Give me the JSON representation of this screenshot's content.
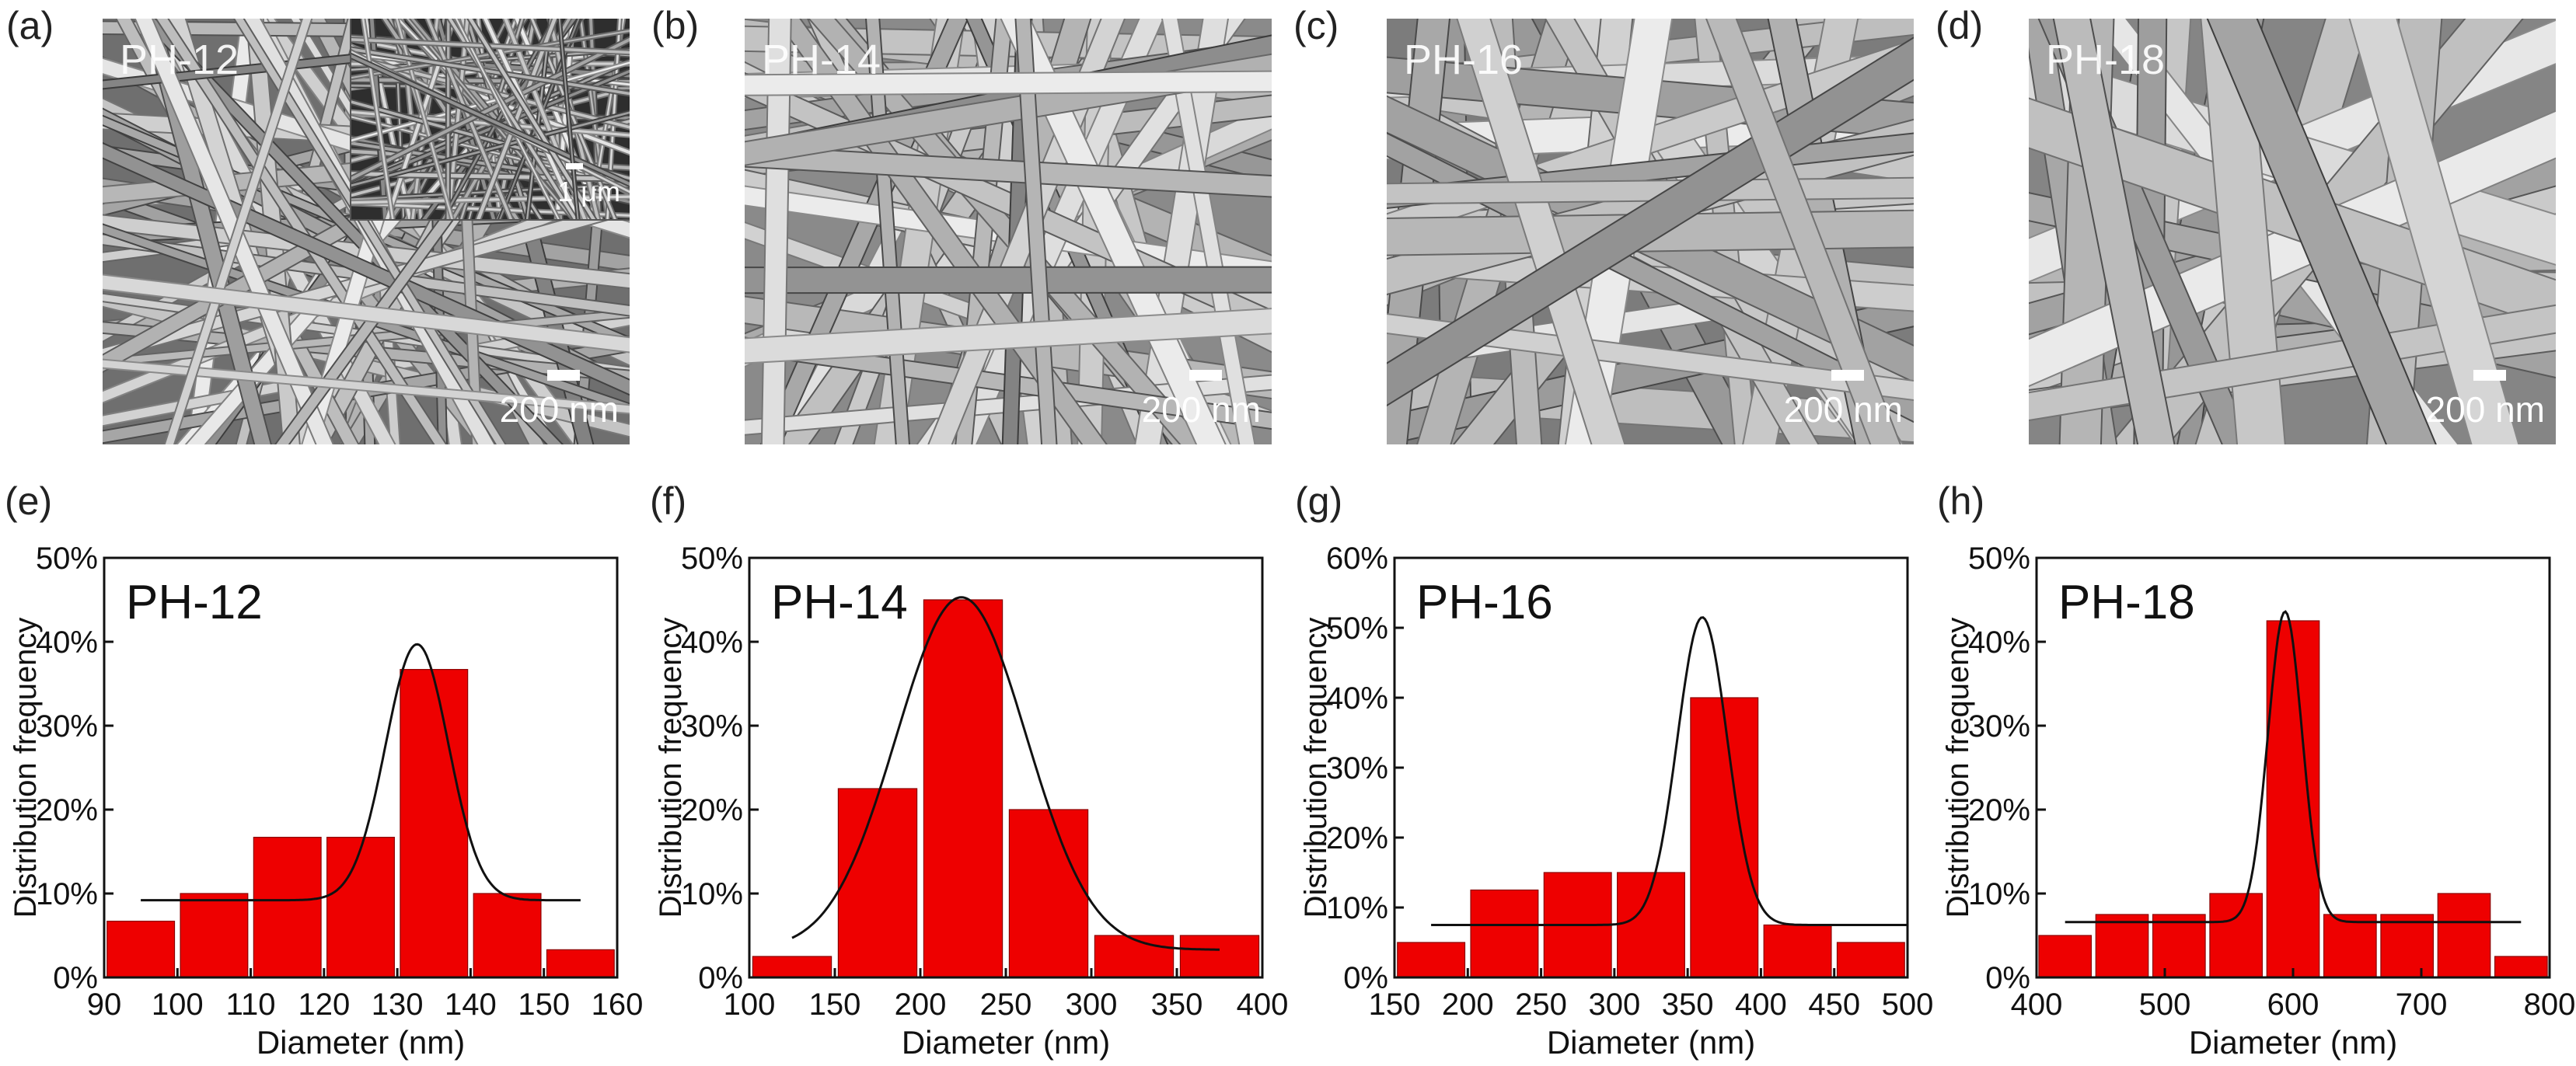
{
  "sem_panels": [
    {
      "letter": "(a)",
      "label": "PH-12",
      "scale": "200 nm",
      "inset_scale": "1 μm",
      "tone": "#6f6f6f"
    },
    {
      "letter": "(b)",
      "label": "PH-14",
      "scale": "200 nm",
      "tone": "#8a8a8a"
    },
    {
      "letter": "(c)",
      "label": "PH-16",
      "scale": "200 nm",
      "tone": "#7c7c7c"
    },
    {
      "letter": "(d)",
      "label": "PH-18",
      "scale": "200 nm",
      "tone": "#858585"
    }
  ],
  "chart_data": [
    {
      "panel": "(e)",
      "type": "bar",
      "title": "PH-12",
      "xlabel": "Diameter (nm)",
      "ylabel": "Distribution frequency",
      "xlim": [
        90,
        160
      ],
      "ylim": [
        0,
        0.5
      ],
      "xticks": [
        "90",
        "100",
        "110",
        "120",
        "130",
        "140",
        "150",
        "160"
      ],
      "yticks": [
        "0%",
        "10%",
        "20%",
        "30%",
        "40%",
        "50%"
      ],
      "bin_width": 10,
      "bars": [
        {
          "x": 95,
          "y": 0.067
        },
        {
          "x": 105,
          "y": 0.1
        },
        {
          "x": 115,
          "y": 0.167
        },
        {
          "x": 125,
          "y": 0.167
        },
        {
          "x": 135,
          "y": 0.367
        },
        {
          "x": 145,
          "y": 0.1
        },
        {
          "x": 155,
          "y": 0.033
        }
      ],
      "fit": {
        "type": "gaussian",
        "x_range": [
          95,
          155
        ],
        "baseline": 0.092,
        "amplitude": 0.305,
        "center": 132.7,
        "sigma": 4.3
      },
      "bar_color": "#ee0000"
    },
    {
      "panel": "(f)",
      "type": "bar",
      "title": "PH-14",
      "xlabel": "Diameter (nm)",
      "ylabel": "Distribution frequency",
      "xlim": [
        100,
        400
      ],
      "ylim": [
        0,
        0.5
      ],
      "xticks": [
        "100",
        "150",
        "200",
        "250",
        "300",
        "350",
        "400"
      ],
      "yticks": [
        "0%",
        "10%",
        "20%",
        "30%",
        "40%",
        "50%"
      ],
      "bin_width": 50,
      "bars": [
        {
          "x": 125,
          "y": 0.025
        },
        {
          "x": 175,
          "y": 0.225
        },
        {
          "x": 225,
          "y": 0.45
        },
        {
          "x": 275,
          "y": 0.2
        },
        {
          "x": 325,
          "y": 0.05
        },
        {
          "x": 375,
          "y": 0.05
        }
      ],
      "fit": {
        "type": "gaussian",
        "x_range": [
          125,
          375
        ],
        "baseline": 0.033,
        "amplitude": 0.42,
        "center": 224,
        "sigma": 38
      },
      "bar_color": "#ee0000"
    },
    {
      "panel": "(g)",
      "type": "bar",
      "title": "PH-16",
      "xlabel": "Diameter (nm)",
      "ylabel": "Distribution frequency",
      "xlim": [
        150,
        500
      ],
      "ylim": [
        0,
        0.6
      ],
      "xticks": [
        "150",
        "200",
        "250",
        "300",
        "350",
        "400",
        "450",
        "500"
      ],
      "yticks": [
        "0%",
        "10%",
        "20%",
        "30%",
        "40%",
        "50%",
        "60%"
      ],
      "bin_width": 50,
      "bars": [
        {
          "x": 175,
          "y": 0.05
        },
        {
          "x": 225,
          "y": 0.125
        },
        {
          "x": 275,
          "y": 0.15
        },
        {
          "x": 325,
          "y": 0.15
        },
        {
          "x": 375,
          "y": 0.4
        },
        {
          "x": 425,
          "y": 0.075
        },
        {
          "x": 475,
          "y": 0.05
        }
      ],
      "fit": {
        "type": "gaussian",
        "x_range": [
          175,
          500
        ],
        "baseline": 0.075,
        "amplitude": 0.44,
        "center": 360,
        "sigma": 17
      },
      "bar_color": "#ee0000"
    },
    {
      "panel": "(h)",
      "type": "bar",
      "title": "PH-18",
      "xlabel": "Diameter (nm)",
      "ylabel": "Distribution frequency",
      "xlim": [
        400,
        850
      ],
      "ylim": [
        0,
        0.5
      ],
      "xticks": [
        "400",
        "500",
        "600",
        "700",
        "800"
      ],
      "yticks": [
        "0%",
        "10%",
        "20%",
        "30%",
        "40%",
        "50%"
      ],
      "bin_width": 50,
      "bars": [
        {
          "x": 425,
          "y": 0.05
        },
        {
          "x": 475,
          "y": 0.075
        },
        {
          "x": 525,
          "y": 0.075
        },
        {
          "x": 575,
          "y": 0.1
        },
        {
          "x": 625,
          "y": 0.425
        },
        {
          "x": 675,
          "y": 0.075
        },
        {
          "x": 725,
          "y": 0.075
        },
        {
          "x": 775,
          "y": 0.1
        },
        {
          "x": 825,
          "y": 0.025
        }
      ],
      "fit": {
        "type": "gaussian",
        "x_range": [
          425,
          825
        ],
        "baseline": 0.066,
        "amplitude": 0.37,
        "center": 618,
        "sigma": 15
      },
      "bar_color": "#ee0000"
    }
  ]
}
